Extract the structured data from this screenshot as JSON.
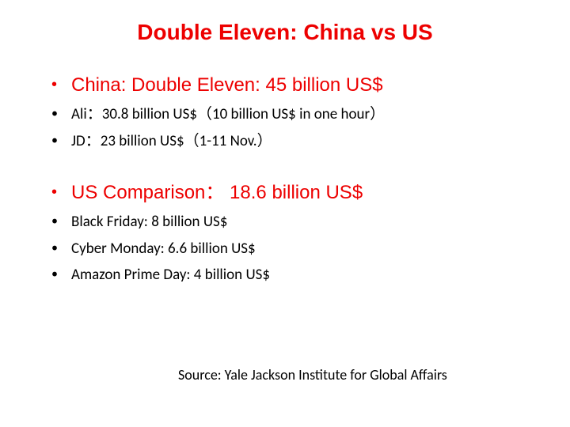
{
  "colors": {
    "red": "#ed0000",
    "black": "#000000",
    "background": "#ffffff"
  },
  "title": "Double Eleven: China vs US",
  "section1": {
    "heading": "China: Double Eleven:  45 billion US$",
    "items": [
      "Ali：30.8 billion US$（10 billion US$ in one hour）",
      "JD：23 billion US$（1-11 Nov.）"
    ]
  },
  "section2": {
    "heading": "US Comparison： 18.6 billion US$",
    "items": [
      "Black Friday: 8 billion US$",
      "Cyber Monday: 6.6 billion US$",
      "Amazon Prime Day: 4 billion US$"
    ]
  },
  "source": "Source: Yale Jackson Institute for Global Affairs",
  "typography": {
    "title_fontsize": 28,
    "main_item_fontsize": 24,
    "sub_item_fontsize": 19,
    "source_fontsize": 18
  }
}
